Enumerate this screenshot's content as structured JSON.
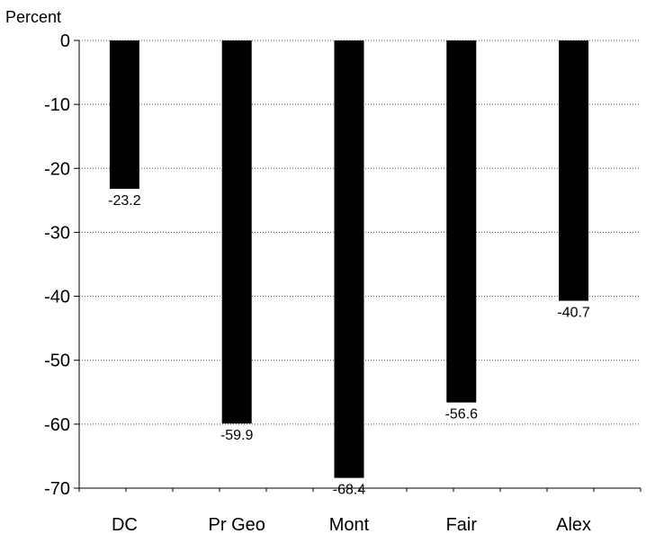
{
  "chart_data": {
    "type": "bar",
    "title": "",
    "xlabel": "",
    "ylabel": "Percent",
    "categories": [
      "DC",
      "Pr Geo",
      "Mont",
      "Fair",
      "Alex"
    ],
    "values": [
      -23.2,
      -59.9,
      -68.4,
      -56.6,
      -40.7
    ],
    "data_labels": [
      "-23.2",
      "-59.9",
      "-68.4",
      "-56.6",
      "-40.7"
    ],
    "ylim": [
      -70,
      0
    ],
    "yticks": [
      0,
      -10,
      -20,
      -30,
      -40,
      -50,
      -60,
      -70
    ],
    "ytick_labels": [
      "0",
      "-10",
      "-20",
      "-30",
      "-40",
      "-50",
      "-60",
      "-70"
    ],
    "grid": "horizontal-dotted",
    "bar_color": "#000000"
  }
}
